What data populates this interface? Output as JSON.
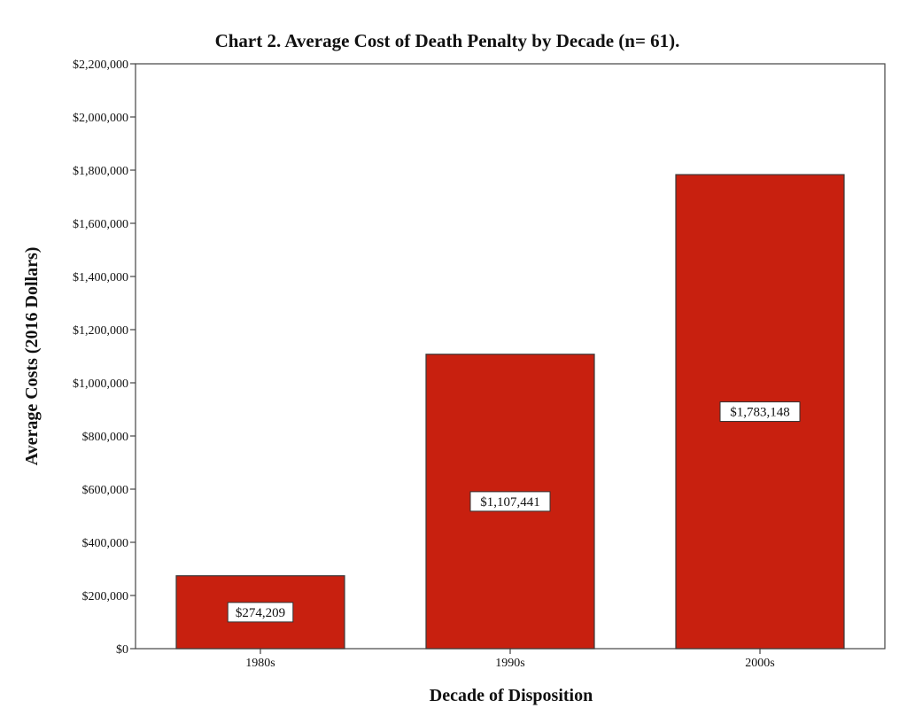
{
  "chart_data": {
    "type": "bar",
    "title": "Chart 2. Average Cost of Death Penalty by Decade (n= 61).",
    "xlabel": "Decade of Disposition",
    "ylabel": "Average Costs (2016 Dollars)",
    "categories": [
      "1980s",
      "1990s",
      "2000s"
    ],
    "values": [
      274209,
      1107441,
      1783148
    ],
    "data_labels": [
      "$274,209",
      "$1,107,441",
      "$1,783,148"
    ],
    "ylim": [
      0,
      2200000
    ],
    "yticks": [
      0,
      200000,
      400000,
      600000,
      800000,
      1000000,
      1200000,
      1400000,
      1600000,
      1800000,
      2000000,
      2200000
    ],
    "ytick_labels": [
      "$0",
      "$200,000",
      "$400,000",
      "$600,000",
      "$800,000",
      "$1,000,000",
      "$1,200,000",
      "$1,400,000",
      "$1,600,000",
      "$1,800,000",
      "$2,000,000",
      "$2,200,000"
    ],
    "grid": false,
    "legend": "none",
    "bar_color": "#c8200f"
  }
}
